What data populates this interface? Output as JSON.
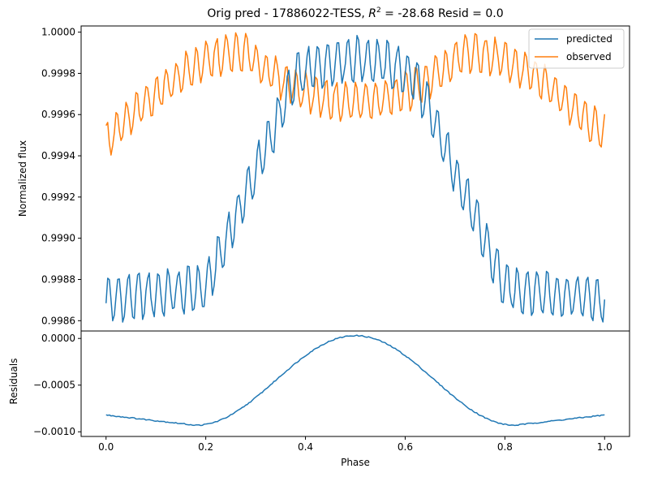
{
  "chart_data": {
    "title_prefix": "Orig pred - 17886022-TESS, ",
    "title_r2_symbol": "R",
    "title_r2_sup": "2",
    "title_suffix": " = -28.68 Resid = 0.0",
    "legend_position": "upper right",
    "colors": {
      "predicted": "#1f77b4",
      "observed": "#ff7f0e",
      "residuals": "#1f77b4"
    },
    "top_panel": {
      "type": "line",
      "ylabel": "Normalized flux",
      "ylim": [
        0.99855,
        1.00003
      ],
      "yticks": [
        0.9986,
        0.9988,
        0.999,
        0.9992,
        0.9994,
        0.9996,
        0.9998,
        1.0
      ],
      "ytick_labels": [
        "0.9986",
        "0.9988",
        "0.9990",
        "0.9992",
        "0.9994",
        "0.9996",
        "0.9998",
        "1.0000"
      ],
      "series": [
        {
          "name": "predicted",
          "model": {
            "phase_range": [
              0,
              1
            ],
            "n_points": 301,
            "baseline": 0.9987,
            "amplitude": 0.00117,
            "transit_center": 0.5,
            "transit_width": 0.12,
            "flat_low_phase": 0.2,
            "ripple_amplitude": 0.00012,
            "ripple_period_phase": 0.02
          }
        },
        {
          "name": "observed",
          "model": {
            "phase_range": [
              0,
              1
            ],
            "n_points": 301,
            "start": 0.99947,
            "peak_phase_left": 0.28,
            "peak_phase_right": 0.72,
            "peak_value": 0.9999,
            "center_value": 0.99966,
            "end": 0.9995,
            "ripple_amplitude": 0.0001,
            "ripple_period_phase": 0.02
          }
        }
      ]
    },
    "bottom_panel": {
      "type": "line",
      "xlabel": "Phase",
      "ylabel": "Residuals",
      "xlim": [
        -0.05,
        1.05
      ],
      "xticks": [
        0.0,
        0.2,
        0.4,
        0.6,
        0.8,
        1.0
      ],
      "xtick_labels": [
        "0.0",
        "0.2",
        "0.4",
        "0.6",
        "0.8",
        "1.0"
      ],
      "ylim": [
        -0.00105,
        8e-05
      ],
      "yticks": [
        -0.001,
        -0.0005,
        0.0
      ],
      "ytick_labels": [
        "−0.0010",
        "−0.0005",
        "0.0000"
      ],
      "series": [
        {
          "name": "residuals",
          "model": {
            "phase_range": [
              0,
              1
            ],
            "n_points": 301,
            "low_value": -0.00093,
            "edge_value": -0.00082,
            "peak_value": 3e-05,
            "peak_phase": 0.5
          }
        }
      ]
    }
  }
}
